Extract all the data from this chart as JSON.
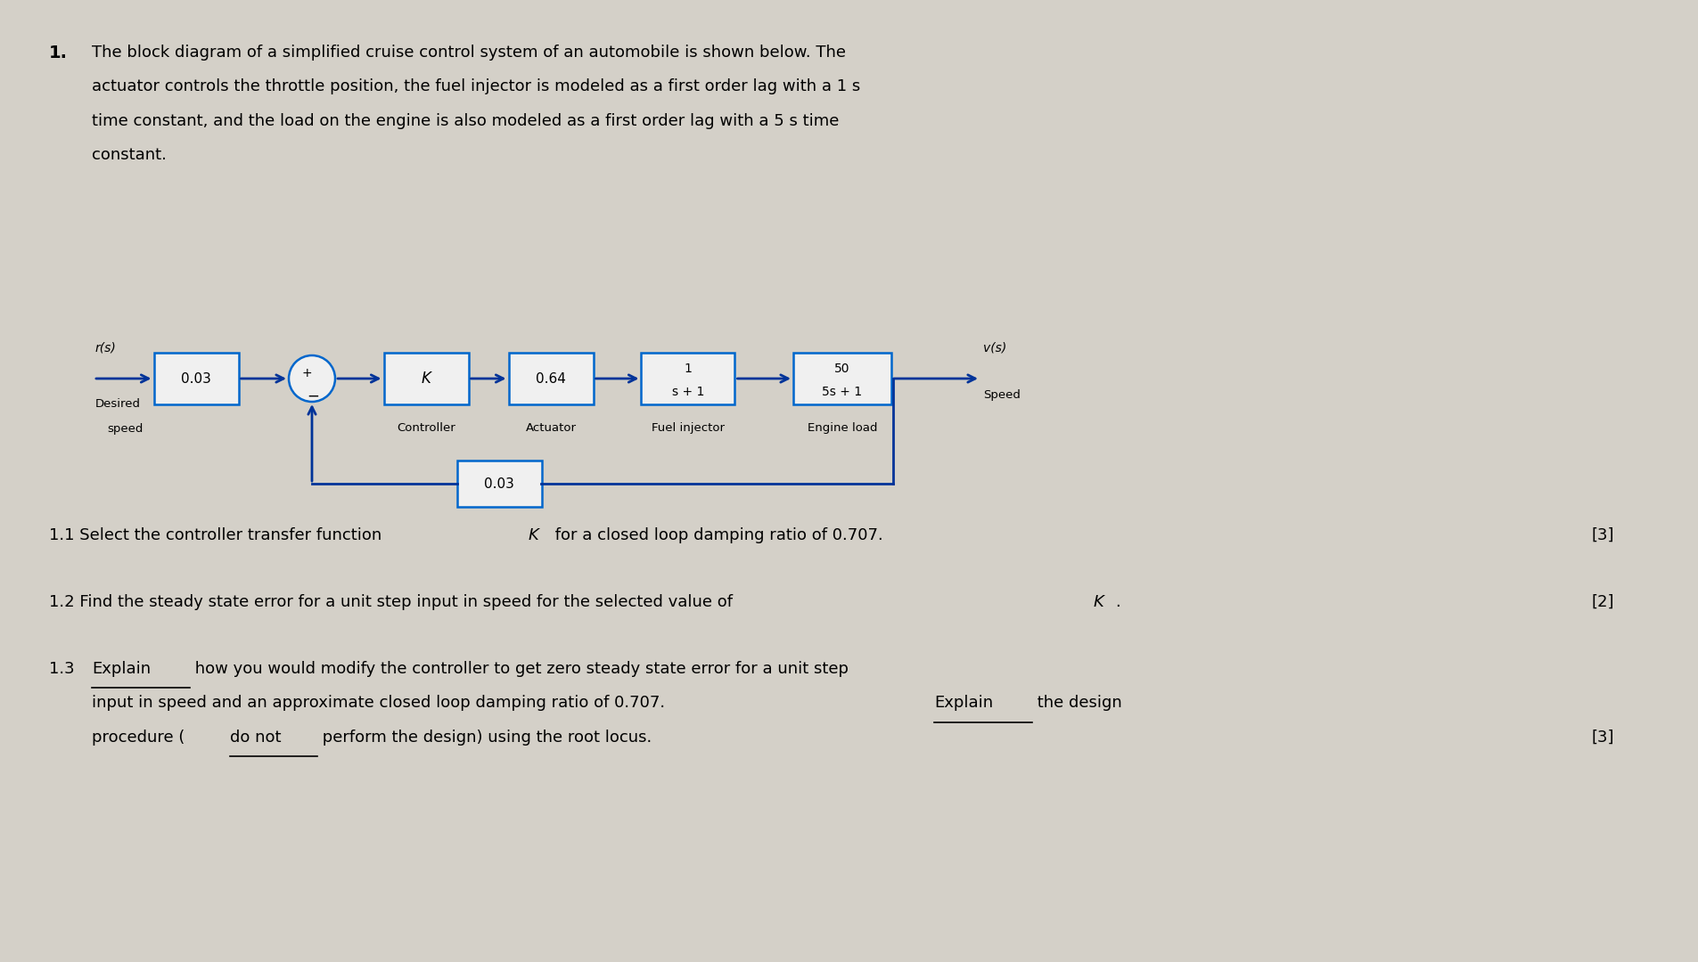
{
  "bg_color": "#d4d0c8",
  "box_color": "#0066cc",
  "box_fill": "#f0f0f0",
  "arrow_color": "#003399",
  "text_color": "#000000",
  "para_lines": [
    "The block diagram of a simplified cruise control system of an automobile is shown below. The",
    "actuator controls the throttle position, the fuel injector is modeled as a first order lag with a 1 s",
    "time constant, and the load on the engine is also modeled as a first order lag with a 5 s time",
    "constant."
  ],
  "input_label": "r(s)",
  "input_sublabel1": "Desired",
  "input_sublabel2": "speed",
  "output_label": "v(s)",
  "output_sublabel": "Speed",
  "block_labels": [
    "0.03",
    "K",
    "0.64",
    "1\ns + 1",
    "50\n5s + 1",
    "0.03"
  ],
  "block_sublabels": [
    "",
    "Controller",
    "Actuator",
    "Fuel injector",
    "Engine load",
    ""
  ],
  "q11_pre": "1.1 Select the controller transfer function ",
  "q11_K": "K",
  "q11_post": " for a closed loop damping ratio of 0.707.",
  "q11_marks": "[3]",
  "q12_pre": "1.2 Find the steady state error for a unit step input in speed for the selected value of ",
  "q12_K": "K",
  "q12_post": ".",
  "q12_marks": "[2]",
  "q13_num": "1.3 ",
  "q13_explain1": "Explain",
  "q13_line1_post": " how you would modify the controller to get zero steady state error for a unit step",
  "q13_line2_pre": "input in speed and an approximate closed loop damping ratio of 0.707. ",
  "q13_explain2": "Explain",
  "q13_line2_post": " the design",
  "q13_line3_pre": "procedure (",
  "q13_donot": "do not",
  "q13_line3_post": " perform the design) using the root locus.",
  "q13_marks": "[3]"
}
